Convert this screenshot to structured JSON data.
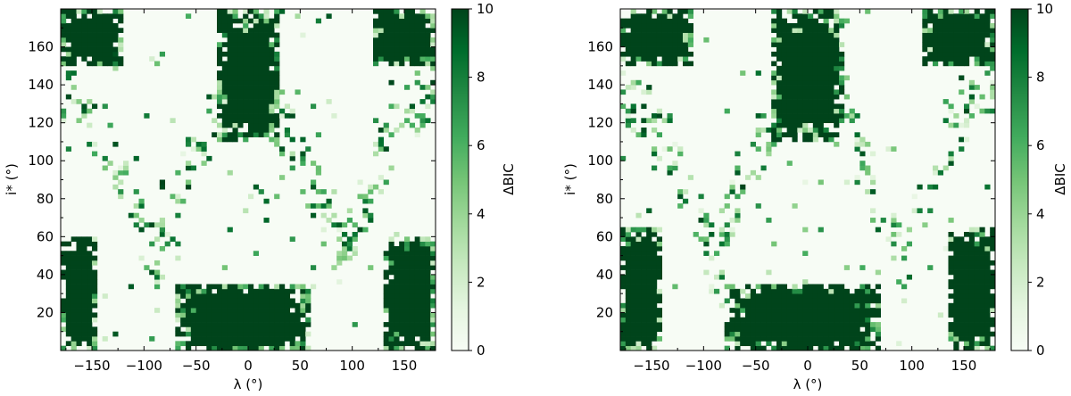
{
  "chart_data": [
    {
      "type": "heatmap",
      "title": "",
      "xlabel": "λ (°)",
      "ylabel": "i* (°)",
      "xlim": [
        -180,
        180
      ],
      "ylim": [
        0,
        180
      ],
      "xticks": [
        -150,
        -100,
        -50,
        0,
        50,
        100,
        150
      ],
      "yticks": [
        20,
        40,
        60,
        80,
        100,
        120,
        140,
        160
      ],
      "grid": false,
      "colorbar": {
        "label": "ΔBIC",
        "range": [
          0,
          10
        ],
        "ticks": [
          0,
          2,
          4,
          6,
          8,
          10
        ],
        "colormap": "Greens",
        "low_color": "#f7fcf5",
        "high_color": "#00441b"
      },
      "bins": {
        "nx": 72,
        "ny": 72
      },
      "high_value_regions": [
        {
          "lambda_range": [
            -30,
            30
          ],
          "i_range": [
            110,
            180
          ],
          "approx_value": 10
        },
        {
          "lambda_range": [
            -180,
            -145
          ],
          "i_range": [
            0,
            60
          ],
          "approx_value": 10
        },
        {
          "lambda_range": [
            130,
            180
          ],
          "i_range": [
            0,
            60
          ],
          "approx_value": 10
        },
        {
          "lambda_range": [
            -180,
            -120
          ],
          "i_range": [
            150,
            180
          ],
          "approx_value": 10
        },
        {
          "lambda_range": [
            120,
            180
          ],
          "i_range": [
            150,
            180
          ],
          "approx_value": 10
        },
        {
          "lambda_range": [
            -70,
            60
          ],
          "i_range": [
            0,
            35
          ],
          "approx_value": 10
        }
      ]
    },
    {
      "type": "heatmap",
      "title": "",
      "xlabel": "λ (°)",
      "ylabel": "i* (°)",
      "xlim": [
        -180,
        180
      ],
      "ylim": [
        0,
        180
      ],
      "xticks": [
        -150,
        -100,
        -50,
        0,
        50,
        100,
        150
      ],
      "yticks": [
        20,
        40,
        60,
        80,
        100,
        120,
        140,
        160
      ],
      "grid": false,
      "colorbar": {
        "label": "ΔBIC",
        "range": [
          0,
          10
        ],
        "ticks": [
          0,
          2,
          4,
          6,
          8,
          10
        ],
        "colormap": "Greens",
        "low_color": "#f7fcf5",
        "high_color": "#00441b"
      },
      "bins": {
        "nx": 72,
        "ny": 72
      },
      "high_value_regions": [
        {
          "lambda_range": [
            -35,
            35
          ],
          "i_range": [
            110,
            180
          ],
          "approx_value": 10
        },
        {
          "lambda_range": [
            -180,
            -140
          ],
          "i_range": [
            0,
            65
          ],
          "approx_value": 10
        },
        {
          "lambda_range": [
            135,
            180
          ],
          "i_range": [
            0,
            65
          ],
          "approx_value": 10
        },
        {
          "lambda_range": [
            -180,
            -110
          ],
          "i_range": [
            150,
            180
          ],
          "approx_value": 10
        },
        {
          "lambda_range": [
            110,
            180
          ],
          "i_range": [
            150,
            180
          ],
          "approx_value": 10
        },
        {
          "lambda_range": [
            -80,
            70
          ],
          "i_range": [
            0,
            35
          ],
          "approx_value": 10
        }
      ]
    }
  ]
}
